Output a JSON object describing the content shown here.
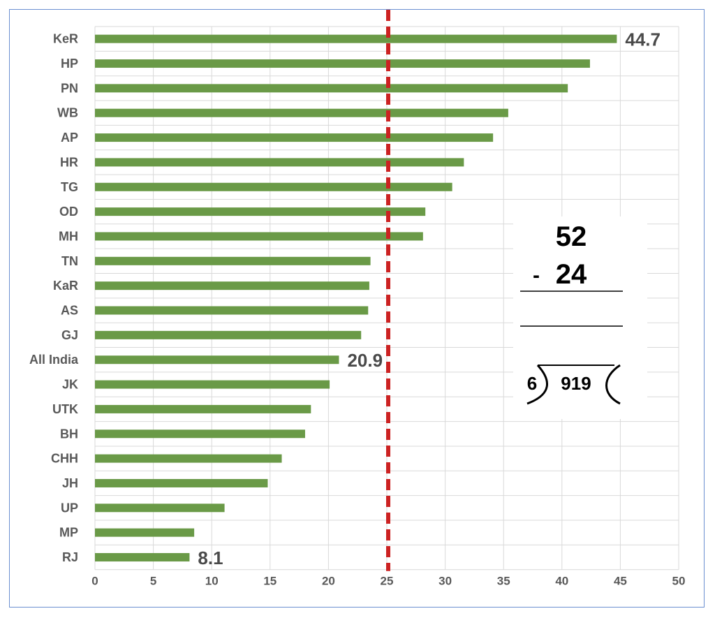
{
  "chart_data": {
    "type": "bar",
    "orientation": "horizontal",
    "categories": [
      "KeR",
      "HP",
      "PN",
      "WB",
      "AP",
      "HR",
      "TG",
      "OD",
      "MH",
      "TN",
      "KaR",
      "AS",
      "GJ",
      "All India",
      "JK",
      "UTK",
      "BH",
      "CHH",
      "JH",
      "UP",
      "MP",
      "RJ"
    ],
    "values": [
      44.7,
      42.4,
      40.5,
      35.4,
      34.1,
      31.6,
      30.6,
      28.3,
      28.1,
      23.6,
      23.5,
      23.4,
      22.8,
      20.9,
      20.1,
      18.5,
      18.0,
      16.0,
      14.8,
      11.1,
      8.5,
      8.1
    ],
    "data_labels": {
      "KeR": "44.7",
      "All India": "20.9",
      "RJ": "8.1"
    },
    "xlim": [
      0,
      50
    ],
    "x_ticks": [
      "0",
      "5",
      "10",
      "15",
      "20",
      "25",
      "30",
      "35",
      "40",
      "45",
      "50"
    ],
    "reference_line": {
      "x": 25,
      "style": "dashed",
      "color": "#cc2222"
    },
    "bar_color": "#6a9a47",
    "grid": true,
    "title": "",
    "xlabel": "",
    "ylabel": ""
  },
  "overlay": {
    "top_number": "52",
    "minus_sign": "-",
    "bottom_number": "24",
    "divisor": "6",
    "dividend": "919"
  }
}
